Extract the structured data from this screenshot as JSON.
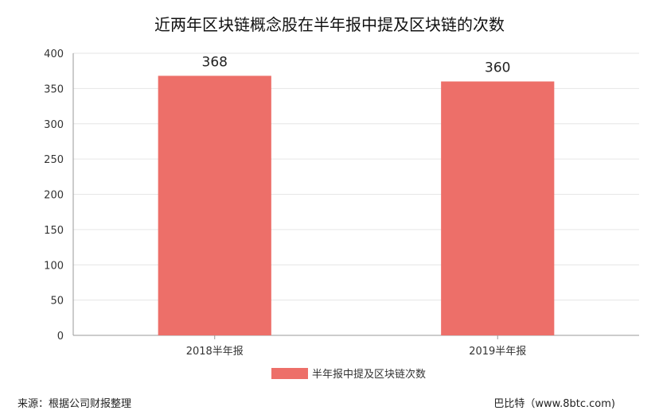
{
  "chart_data": {
    "type": "bar",
    "title": "近两年区块链概念股在半年报中提及区块链的次数",
    "categories": [
      "2018半年报",
      "2019半年报"
    ],
    "series": [
      {
        "name": "半年报中提及区块链次数",
        "values": [
          368,
          360
        ],
        "color": "#ed6f69"
      }
    ],
    "data_labels": [
      "368",
      "360"
    ],
    "ylim": [
      0,
      400
    ],
    "yticks": [
      0,
      50,
      100,
      150,
      200,
      250,
      300,
      350,
      400
    ],
    "grid": true,
    "legend": "bottom",
    "xlabel": "",
    "ylabel": ""
  },
  "footer": {
    "source": "来源：根据公司财报整理",
    "credit": "巴比特（www.8btc.com)"
  },
  "colors": {
    "bar": "#ed6f69",
    "grid": "#e6e6e6",
    "axis": "#999999"
  }
}
